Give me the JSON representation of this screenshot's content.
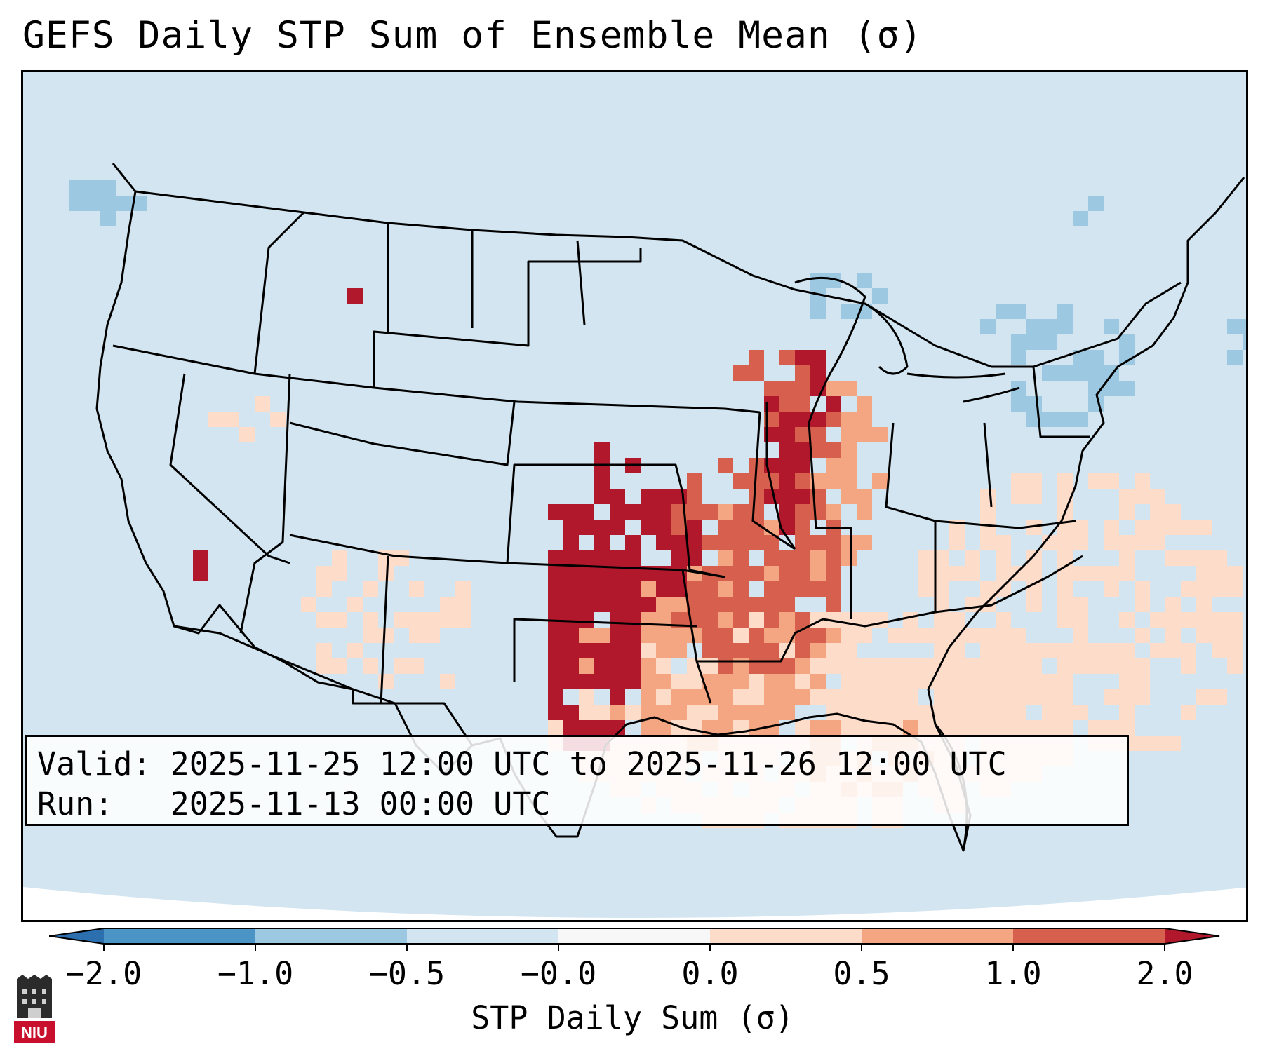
{
  "title": "GEFS Daily STP Sum of Ensemble Mean (σ)",
  "info": {
    "valid_label": "Valid:",
    "valid_value": "2025-11-25 12:00 UTC to 2025-11-26 12:00 UTC",
    "run_label": "Run:",
    "run_value": "2025-11-13 00:00 UTC"
  },
  "colorbar": {
    "label": "STP Daily Sum (σ)",
    "ticks": [
      "−2.0",
      "−1.0",
      "−0.5",
      "−0.0",
      "0.0",
      "0.5",
      "1.0",
      "2.0"
    ],
    "bins": [
      {
        "color": "#4b94c6"
      },
      {
        "color": "#9cc9e1"
      },
      {
        "color": "#d2e5f0"
      },
      {
        "color": "#f7f7f7"
      },
      {
        "color": "#fddcc9"
      },
      {
        "color": "#f4a582"
      },
      {
        "color": "#d6604d"
      }
    ],
    "under_color": "#2c6fae",
    "over_color": "#b2182b"
  },
  "map": {
    "background_color": "#d2e5f0",
    "projection": "Lambert Conformal",
    "region": "CONUS"
  },
  "logo": {
    "text": "NIU"
  },
  "field_regions": [
    {
      "name": "southern-plains-high",
      "level": "over"
    },
    {
      "name": "mid-mississippi-valley",
      "level": "1.0-2.0"
    },
    {
      "name": "gulf-coast-elevated",
      "level": "0.0-0.5"
    },
    {
      "name": "great-lakes-low",
      "level": "-1.0--0.5"
    }
  ]
}
